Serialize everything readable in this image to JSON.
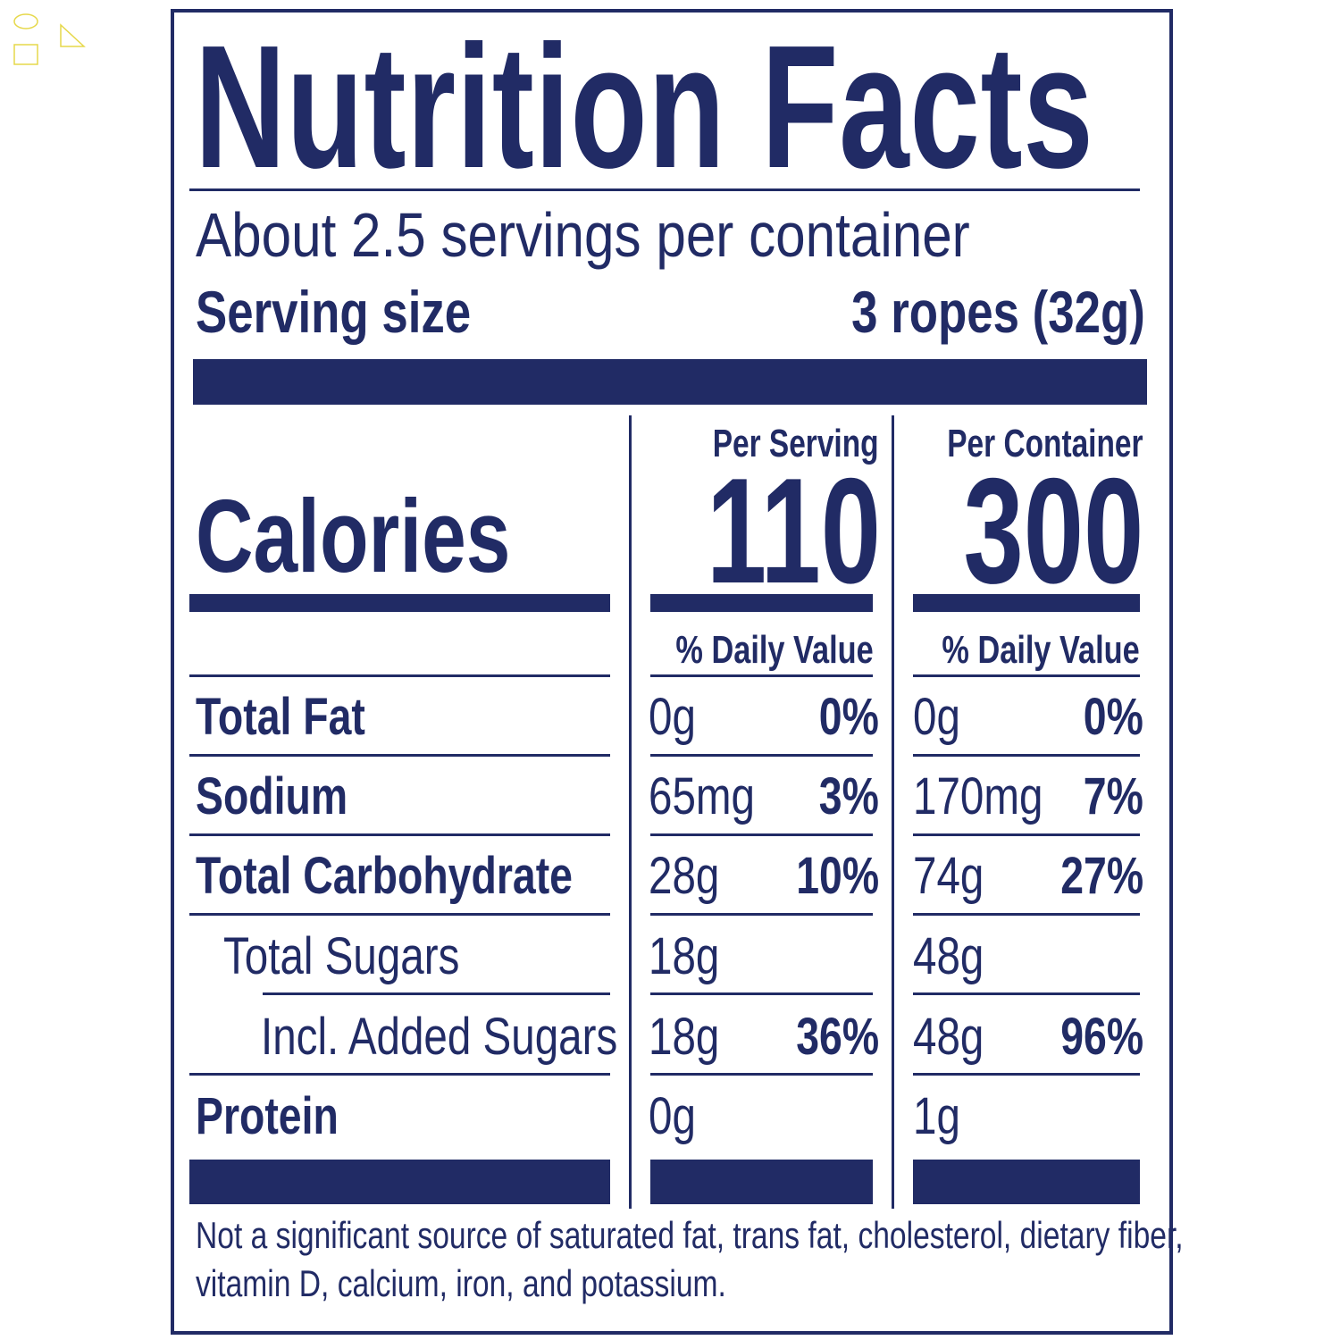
{
  "label": {
    "title": "Nutrition Facts",
    "servings_per_container": "About 2.5 servings per container",
    "serving_size_label": "Serving size",
    "serving_size_value": "3 ropes (32g)",
    "calories_label": "Calories",
    "columns": [
      {
        "heading": "Per Serving",
        "calories": "110",
        "dv_heading": "% Daily Value"
      },
      {
        "heading": "Per Container",
        "calories": "300",
        "dv_heading": "% Daily Value"
      }
    ],
    "nutrients": [
      {
        "name": "Total Fat",
        "serving": {
          "amount": "0g",
          "dv": "0%"
        },
        "container": {
          "amount": "0g",
          "dv": "0%"
        }
      },
      {
        "name": "Sodium",
        "serving": {
          "amount": "65mg",
          "dv": "3%"
        },
        "container": {
          "amount": "170mg",
          "dv": "7%"
        }
      },
      {
        "name": "Total Carbohydrate",
        "serving": {
          "amount": "28g",
          "dv": "10%"
        },
        "container": {
          "amount": "74g",
          "dv": "27%"
        }
      },
      {
        "name": "Total Sugars",
        "serving": {
          "amount": "18g",
          "dv": ""
        },
        "container": {
          "amount": "48g",
          "dv": ""
        }
      },
      {
        "name": "Incl. Added Sugars",
        "serving": {
          "amount": "18g",
          "dv": "36%"
        },
        "container": {
          "amount": "48g",
          "dv": "96%"
        }
      },
      {
        "name": "Protein",
        "serving": {
          "amount": "0g",
          "dv": ""
        },
        "container": {
          "amount": "1g",
          "dv": ""
        }
      }
    ],
    "footnote_line1": "Not a significant source of saturated fat, trans fat, cholesterol, dietary fiber,",
    "footnote_line2": "vitamin D, calcium, iron, and potassium."
  },
  "colors": {
    "ink": "#212b65",
    "background": "#ffffff",
    "corner_shapes": "#e6d84a"
  },
  "icons": [
    "circle-shape-icon",
    "square-shape-icon",
    "triangle-shape-icon"
  ]
}
